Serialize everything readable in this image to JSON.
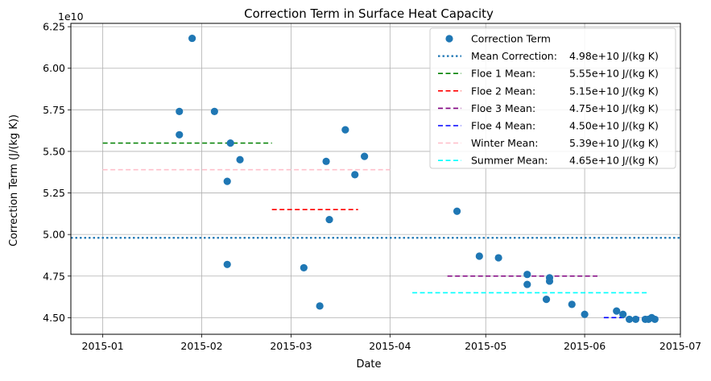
{
  "chart_data": {
    "type": "scatter",
    "title": "Correction Term in Surface Heat Capacity",
    "xlabel": "Date",
    "ylabel": "Correction Term (J/(kg K))",
    "y_offset_label": "1e10",
    "x_type": "date",
    "xlim": [
      "2014-12-22",
      "2015-07-01"
    ],
    "ylim": [
      4.4,
      6.27
    ],
    "y_scale_factor": 10000000000.0,
    "grid": true,
    "legend_position": "top-right",
    "x_ticks": [
      "2015-01-01",
      "2015-02-01",
      "2015-03-01",
      "2015-04-01",
      "2015-05-01",
      "2015-06-01",
      "2015-07-01"
    ],
    "x_tick_labels": [
      "2015-01",
      "2015-02",
      "2015-03",
      "2015-04",
      "2015-05",
      "2015-06",
      "2015-07"
    ],
    "y_ticks": [
      4.5,
      4.75,
      5.0,
      5.25,
      5.5,
      5.75,
      6.0,
      6.25
    ],
    "y_tick_labels": [
      "4.50",
      "4.75",
      "5.00",
      "5.25",
      "5.50",
      "5.75",
      "6.00",
      "6.25"
    ],
    "series": [
      {
        "name": "Correction Term",
        "kind": "points",
        "color": "#1f77b4",
        "points": [
          {
            "x": "2015-01-25",
            "y": 5.6
          },
          {
            "x": "2015-01-25",
            "y": 5.74
          },
          {
            "x": "2015-01-29",
            "y": 6.18
          },
          {
            "x": "2015-02-05",
            "y": 5.74
          },
          {
            "x": "2015-02-09",
            "y": 5.32
          },
          {
            "x": "2015-02-09",
            "y": 4.82
          },
          {
            "x": "2015-02-10",
            "y": 5.55
          },
          {
            "x": "2015-02-13",
            "y": 5.45
          },
          {
            "x": "2015-03-05",
            "y": 4.8
          },
          {
            "x": "2015-03-10",
            "y": 4.57
          },
          {
            "x": "2015-03-12",
            "y": 5.44
          },
          {
            "x": "2015-03-13",
            "y": 5.09
          },
          {
            "x": "2015-03-18",
            "y": 5.63
          },
          {
            "x": "2015-03-21",
            "y": 5.36
          },
          {
            "x": "2015-03-24",
            "y": 5.47
          },
          {
            "x": "2015-04-22",
            "y": 5.14
          },
          {
            "x": "2015-04-29",
            "y": 4.87
          },
          {
            "x": "2015-05-05",
            "y": 4.86
          },
          {
            "x": "2015-05-14",
            "y": 4.76
          },
          {
            "x": "2015-05-14",
            "y": 4.7
          },
          {
            "x": "2015-05-20",
            "y": 4.61
          },
          {
            "x": "2015-05-21",
            "y": 4.74
          },
          {
            "x": "2015-05-21",
            "y": 4.72
          },
          {
            "x": "2015-05-28",
            "y": 4.58
          },
          {
            "x": "2015-06-01",
            "y": 4.52
          },
          {
            "x": "2015-06-11",
            "y": 4.54
          },
          {
            "x": "2015-06-13",
            "y": 4.52
          },
          {
            "x": "2015-06-15",
            "y": 4.49
          },
          {
            "x": "2015-06-17",
            "y": 4.49
          },
          {
            "x": "2015-06-20",
            "y": 4.49
          },
          {
            "x": "2015-06-21",
            "y": 4.49
          },
          {
            "x": "2015-06-22",
            "y": 4.5
          },
          {
            "x": "2015-06-23",
            "y": 4.49
          }
        ]
      },
      {
        "name": "Mean Correction",
        "label": "4.98e+10 J/(kg K)",
        "kind": "hline-full",
        "y": 4.98,
        "color": "#1f77b4",
        "dash": "dotted"
      },
      {
        "name": "Floe 1 Mean",
        "label": "5.55e+10 J/(kg K)",
        "kind": "hsegment",
        "y": 5.55,
        "x_start": "2015-01-01",
        "x_end": "2015-02-23",
        "color": "#008000",
        "dash": "dashed"
      },
      {
        "name": "Floe 2 Mean",
        "label": "5.15e+10 J/(kg K)",
        "kind": "hsegment",
        "y": 5.15,
        "x_start": "2015-02-23",
        "x_end": "2015-03-22",
        "color": "#ff0000",
        "dash": "dashed"
      },
      {
        "name": "Floe 3 Mean",
        "label": "4.75e+10 J/(kg K)",
        "kind": "hsegment",
        "y": 4.75,
        "x_start": "2015-04-19",
        "x_end": "2015-06-05",
        "color": "#800080",
        "dash": "dashed"
      },
      {
        "name": "Floe 4 Mean",
        "label": "4.50e+10 J/(kg K)",
        "kind": "hsegment",
        "y": 4.5,
        "x_start": "2015-06-07",
        "x_end": "2015-06-24",
        "color": "#0000ff",
        "dash": "dashed"
      },
      {
        "name": "Winter Mean",
        "label": "5.39e+10 J/(kg K)",
        "kind": "hsegment",
        "y": 5.39,
        "x_start": "2015-01-01",
        "x_end": "2015-04-01",
        "color": "#ffc0cb",
        "dash": "dashed"
      },
      {
        "name": "Summer Mean",
        "label": "4.65e+10 J/(kg K)",
        "kind": "hsegment",
        "y": 4.65,
        "x_start": "2015-04-08",
        "x_end": "2015-06-21",
        "color": "#00ffff",
        "dash": "dashed"
      }
    ],
    "legend": [
      {
        "label": "Correction Term",
        "value": "",
        "marker": "point",
        "color": "#1f77b4"
      },
      {
        "label": "Mean Correction:",
        "value": "4.98e+10 J/(kg K)",
        "marker": "dotted",
        "color": "#1f77b4"
      },
      {
        "label": "Floe 1 Mean:",
        "value": "5.55e+10 J/(kg K)",
        "marker": "dashed",
        "color": "#008000"
      },
      {
        "label": "Floe 2 Mean:",
        "value": "5.15e+10 J/(kg K)",
        "marker": "dashed",
        "color": "#ff0000"
      },
      {
        "label": "Floe 3 Mean:",
        "value": "4.75e+10 J/(kg K)",
        "marker": "dashed",
        "color": "#800080"
      },
      {
        "label": "Floe 4 Mean:",
        "value": "4.50e+10 J/(kg K)",
        "marker": "dashed",
        "color": "#0000ff"
      },
      {
        "label": "Winter Mean:",
        "value": "5.39e+10 J/(kg K)",
        "marker": "dashed",
        "color": "#ffc0cb"
      },
      {
        "label": "Summer Mean:",
        "value": "4.65e+10 J/(kg K)",
        "marker": "dashed",
        "color": "#00ffff"
      }
    ]
  }
}
